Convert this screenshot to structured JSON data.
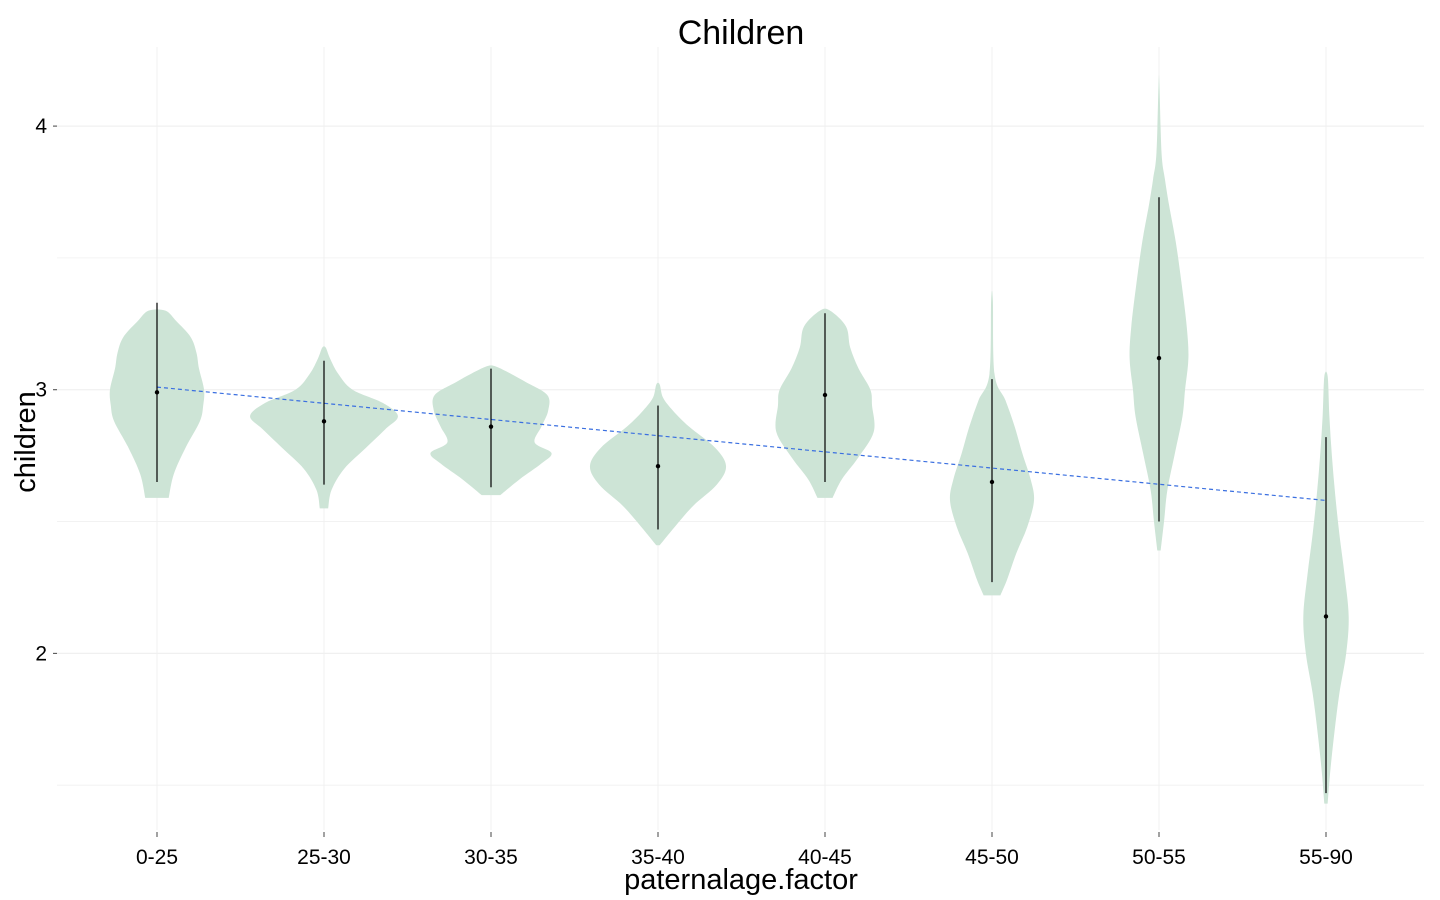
{
  "chart_data": {
    "type": "violin",
    "title": "Children",
    "xlabel": "paternalage.factor",
    "ylabel": "children",
    "ylim": [
      1.33,
      4.3
    ],
    "yticks": [
      2,
      3,
      4
    ],
    "ytick_labels": [
      "2",
      "3",
      "4"
    ],
    "grid": true,
    "categories": [
      "0-25",
      "25-30",
      "30-35",
      "35-40",
      "40-45",
      "45-50",
      "50-55",
      "55-90"
    ],
    "violins": [
      {
        "category": "0-25",
        "min": 2.59,
        "max": 3.3,
        "mean": 2.99,
        "line_low": 2.65,
        "line_high": 3.33,
        "profile": [
          [
            2.59,
            0.14
          ],
          [
            2.68,
            0.2
          ],
          [
            2.78,
            0.34
          ],
          [
            2.88,
            0.51
          ],
          [
            2.94,
            0.55
          ],
          [
            3.0,
            0.56
          ],
          [
            3.08,
            0.5
          ],
          [
            3.14,
            0.47
          ],
          [
            3.2,
            0.4
          ],
          [
            3.26,
            0.23
          ],
          [
            3.3,
            0.1
          ]
        ]
      },
      {
        "category": "25-30",
        "min": 2.55,
        "max": 3.16,
        "mean": 2.88,
        "line_low": 2.64,
        "line_high": 3.11,
        "profile": [
          [
            2.55,
            0.05
          ],
          [
            2.62,
            0.09
          ],
          [
            2.7,
            0.24
          ],
          [
            2.78,
            0.5
          ],
          [
            2.85,
            0.73
          ],
          [
            2.9,
            0.88
          ],
          [
            2.95,
            0.7
          ],
          [
            3.0,
            0.34
          ],
          [
            3.06,
            0.17
          ],
          [
            3.12,
            0.07
          ],
          [
            3.16,
            0.02
          ]
        ]
      },
      {
        "category": "30-35",
        "min": 2.6,
        "max": 3.09,
        "mean": 2.86,
        "line_low": 2.63,
        "line_high": 3.08,
        "profile": [
          [
            2.6,
            0.11
          ],
          [
            2.66,
            0.34
          ],
          [
            2.72,
            0.6
          ],
          [
            2.76,
            0.72
          ],
          [
            2.8,
            0.52
          ],
          [
            2.86,
            0.6
          ],
          [
            2.92,
            0.68
          ],
          [
            2.98,
            0.67
          ],
          [
            3.03,
            0.41
          ],
          [
            3.07,
            0.18
          ],
          [
            3.09,
            0.04
          ]
        ]
      },
      {
        "category": "35-40",
        "min": 2.41,
        "max": 3.02,
        "mean": 2.71,
        "line_low": 2.47,
        "line_high": 2.94,
        "profile": [
          [
            2.41,
            0.02
          ],
          [
            2.48,
            0.2
          ],
          [
            2.56,
            0.42
          ],
          [
            2.64,
            0.7
          ],
          [
            2.71,
            0.81
          ],
          [
            2.78,
            0.68
          ],
          [
            2.86,
            0.37
          ],
          [
            2.92,
            0.18
          ],
          [
            2.97,
            0.06
          ],
          [
            3.02,
            0.02
          ]
        ]
      },
      {
        "category": "40-45",
        "min": 2.59,
        "max": 3.31,
        "mean": 2.98,
        "line_low": 2.65,
        "line_high": 3.29,
        "profile": [
          [
            2.59,
            0.09
          ],
          [
            2.66,
            0.2
          ],
          [
            2.74,
            0.39
          ],
          [
            2.84,
            0.58
          ],
          [
            2.94,
            0.56
          ],
          [
            3.0,
            0.54
          ],
          [
            3.08,
            0.4
          ],
          [
            3.16,
            0.3
          ],
          [
            3.24,
            0.25
          ],
          [
            3.3,
            0.06
          ]
        ]
      },
      {
        "category": "45-50",
        "min": 2.22,
        "max": 3.34,
        "mean": 2.65,
        "line_low": 2.27,
        "line_high": 3.04,
        "profile": [
          [
            2.22,
            0.1
          ],
          [
            2.28,
            0.18
          ],
          [
            2.38,
            0.29
          ],
          [
            2.48,
            0.42
          ],
          [
            2.58,
            0.5
          ],
          [
            2.66,
            0.46
          ],
          [
            2.76,
            0.36
          ],
          [
            2.86,
            0.27
          ],
          [
            2.96,
            0.16
          ],
          [
            3.06,
            0.03
          ],
          [
            3.34,
            0.01
          ]
        ]
      },
      {
        "category": "50-55",
        "min": 2.39,
        "max": 4.16,
        "mean": 3.12,
        "line_low": 2.5,
        "line_high": 3.73,
        "profile": [
          [
            2.39,
            0.02
          ],
          [
            2.5,
            0.06
          ],
          [
            2.62,
            0.1
          ],
          [
            2.76,
            0.19
          ],
          [
            2.9,
            0.28
          ],
          [
            3.0,
            0.31
          ],
          [
            3.12,
            0.35
          ],
          [
            3.24,
            0.33
          ],
          [
            3.4,
            0.27
          ],
          [
            3.56,
            0.2
          ],
          [
            3.7,
            0.12
          ],
          [
            3.8,
            0.07
          ],
          [
            3.9,
            0.03
          ],
          [
            4.16,
            0.005
          ]
        ]
      },
      {
        "category": "55-90",
        "min": 1.43,
        "max": 3.05,
        "mean": 2.14,
        "line_low": 1.47,
        "line_high": 2.82,
        "profile": [
          [
            1.43,
            0.02
          ],
          [
            1.55,
            0.05
          ],
          [
            1.7,
            0.1
          ],
          [
            1.85,
            0.16
          ],
          [
            2.0,
            0.24
          ],
          [
            2.14,
            0.27
          ],
          [
            2.3,
            0.22
          ],
          [
            2.45,
            0.16
          ],
          [
            2.6,
            0.11
          ],
          [
            2.75,
            0.07
          ],
          [
            2.9,
            0.04
          ],
          [
            3.05,
            0.02
          ]
        ]
      }
    ],
    "trendline": {
      "from": {
        "category": "0-25",
        "y": 3.01
      },
      "to": {
        "category": "55-90",
        "y": 2.58
      }
    },
    "colors": {
      "violin_fill": "#cde4d6",
      "summary": "#000000",
      "trendline": "#3a6fe0",
      "grid": "#f0f0f0",
      "tick": "#444444"
    }
  }
}
